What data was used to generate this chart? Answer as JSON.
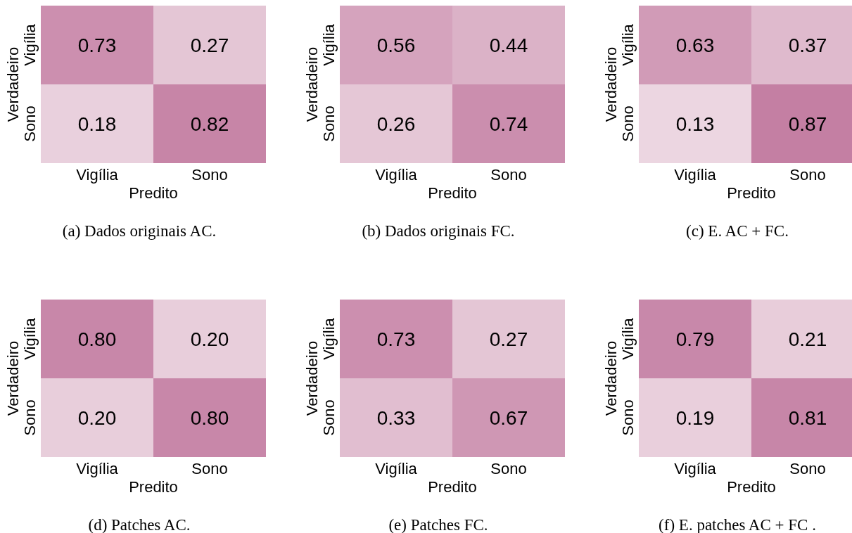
{
  "chart_data": [
    {
      "type": "heatmap",
      "title": "(a) Dados originais AC.",
      "xlabel": "Predito",
      "ylabel": "Verdadeiro",
      "categories": [
        "Vigília",
        "Sono"
      ],
      "y_categories": [
        "Vigília",
        "Sono"
      ],
      "cells": [
        [
          0.73,
          0.27
        ],
        [
          0.18,
          0.82
        ]
      ],
      "cell_labels": [
        [
          "0.73",
          "0.27"
        ],
        [
          "0.18",
          "0.82"
        ]
      ]
    },
    {
      "type": "heatmap",
      "title": "(b) Dados originais FC.",
      "xlabel": "Predito",
      "ylabel": "Verdadeiro",
      "categories": [
        "Vigília",
        "Sono"
      ],
      "y_categories": [
        "Vigília",
        "Sono"
      ],
      "cells": [
        [
          0.56,
          0.44
        ],
        [
          0.26,
          0.74
        ]
      ],
      "cell_labels": [
        [
          "0.56",
          "0.44"
        ],
        [
          "0.26",
          "0.74"
        ]
      ]
    },
    {
      "type": "heatmap",
      "title": "(c) E. AC + FC.",
      "xlabel": "Predito",
      "ylabel": "Verdadeiro",
      "categories": [
        "Vigília",
        "Sono"
      ],
      "y_categories": [
        "Vigília",
        "Sono"
      ],
      "cells": [
        [
          0.63,
          0.37
        ],
        [
          0.13,
          0.87
        ]
      ],
      "cell_labels": [
        [
          "0.63",
          "0.37"
        ],
        [
          "0.13",
          "0.87"
        ]
      ]
    },
    {
      "type": "heatmap",
      "title": "(d) Patches AC.",
      "xlabel": "Predito",
      "ylabel": "Verdadeiro",
      "categories": [
        "Vigília",
        "Sono"
      ],
      "y_categories": [
        "Vigília",
        "Sono"
      ],
      "cells": [
        [
          0.8,
          0.2
        ],
        [
          0.2,
          0.8
        ]
      ],
      "cell_labels": [
        [
          "0.80",
          "0.20"
        ],
        [
          "0.20",
          "0.80"
        ]
      ]
    },
    {
      "type": "heatmap",
      "title": "(e) Patches FC.",
      "xlabel": "Predito",
      "ylabel": "Verdadeiro",
      "categories": [
        "Vigília",
        "Sono"
      ],
      "y_categories": [
        "Vigília",
        "Sono"
      ],
      "cells": [
        [
          0.73,
          0.27
        ],
        [
          0.33,
          0.67
        ]
      ],
      "cell_labels": [
        [
          "0.73",
          "0.27"
        ],
        [
          "0.33",
          "0.67"
        ]
      ]
    },
    {
      "type": "heatmap",
      "title": "(f) E. patches AC + FC .",
      "xlabel": "Predito",
      "ylabel": "Verdadeiro",
      "categories": [
        "Vigília",
        "Sono"
      ],
      "y_categories": [
        "Vigília",
        "Sono"
      ],
      "cells": [
        [
          0.79,
          0.21
        ],
        [
          0.19,
          0.81
        ]
      ],
      "cell_labels": [
        [
          "0.79",
          "0.21"
        ],
        [
          "0.19",
          "0.81"
        ]
      ]
    }
  ]
}
